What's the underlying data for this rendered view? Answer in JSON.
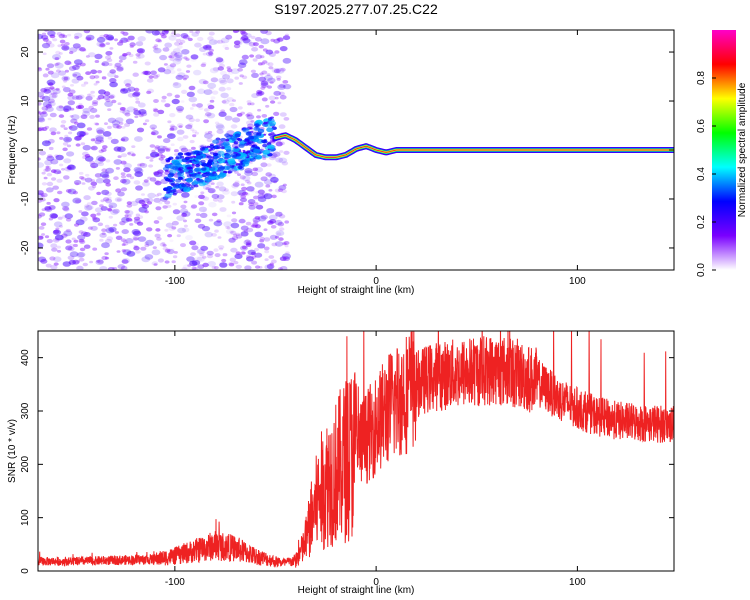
{
  "title": "S197.2025.277.07.25.C22",
  "chart_data": [
    {
      "type": "heatmap",
      "xlabel": "Height of straight line (km)",
      "ylabel": "Frequency (Hz)",
      "xlim": [
        -168,
        148
      ],
      "ylim": [
        -24.5,
        24.5
      ],
      "xticks": [
        -100,
        0,
        100
      ],
      "yticks": [
        -20,
        -10,
        0,
        10,
        20
      ],
      "colorbar": {
        "label": "Normalized spectral amplitude",
        "range": [
          0,
          1
        ],
        "ticks": [
          0.0,
          0.2,
          0.4,
          0.6,
          0.8
        ],
        "colors": [
          "#ffffff",
          "#7a00ff",
          "#0000ff",
          "#00ffff",
          "#00ff00",
          "#ffff00",
          "#ff0000",
          "#ff00c8"
        ]
      },
      "features": {
        "noise_region_x": [
          -168,
          -50
        ],
        "line_start_x": -50,
        "line_track": [
          {
            "x": -50,
            "f": 2.5
          },
          {
            "x": -45,
            "f": 3.0
          },
          {
            "x": -40,
            "f": 2.0
          },
          {
            "x": -35,
            "f": 0.5
          },
          {
            "x": -30,
            "f": -1.0
          },
          {
            "x": -25,
            "f": -1.5
          },
          {
            "x": -20,
            "f": -1.5
          },
          {
            "x": -15,
            "f": -1.0
          },
          {
            "x": -10,
            "f": 0.2
          },
          {
            "x": -5,
            "f": 0.8
          },
          {
            "x": 0,
            "f": 0.0
          },
          {
            "x": 5,
            "f": -0.5
          },
          {
            "x": 10,
            "f": 0.0
          },
          {
            "x": 20,
            "f": 0.0
          },
          {
            "x": 148,
            "f": 0.0
          }
        ]
      }
    },
    {
      "type": "line",
      "xlabel": "Height of straight line (km)",
      "ylabel": "SNR (10 * v/v)",
      "xlim": [
        -168,
        148
      ],
      "ylim": [
        0,
        450
      ],
      "xticks": [
        -100,
        0,
        100
      ],
      "yticks": [
        0,
        100,
        200,
        300,
        400
      ],
      "color": "#ee2222",
      "series": [
        {
          "name": "SNR",
          "x": [
            -168,
            -150,
            -130,
            -110,
            -100,
            -90,
            -80,
            -70,
            -60,
            -50,
            -45,
            -40,
            -36,
            -32,
            -28,
            -24,
            -20,
            -15,
            -10,
            -5,
            0,
            5,
            10,
            15,
            20,
            25,
            30,
            40,
            50,
            60,
            70,
            80,
            85,
            90,
            100,
            110,
            120,
            130,
            140,
            148
          ],
          "values": [
            18,
            18,
            20,
            22,
            28,
            38,
            48,
            42,
            28,
            18,
            15,
            20,
            45,
            100,
            145,
            170,
            185,
            210,
            230,
            250,
            275,
            300,
            320,
            335,
            350,
            360,
            365,
            370,
            375,
            378,
            370,
            355,
            340,
            325,
            305,
            290,
            282,
            278,
            276,
            275
          ]
        }
      ]
    }
  ]
}
